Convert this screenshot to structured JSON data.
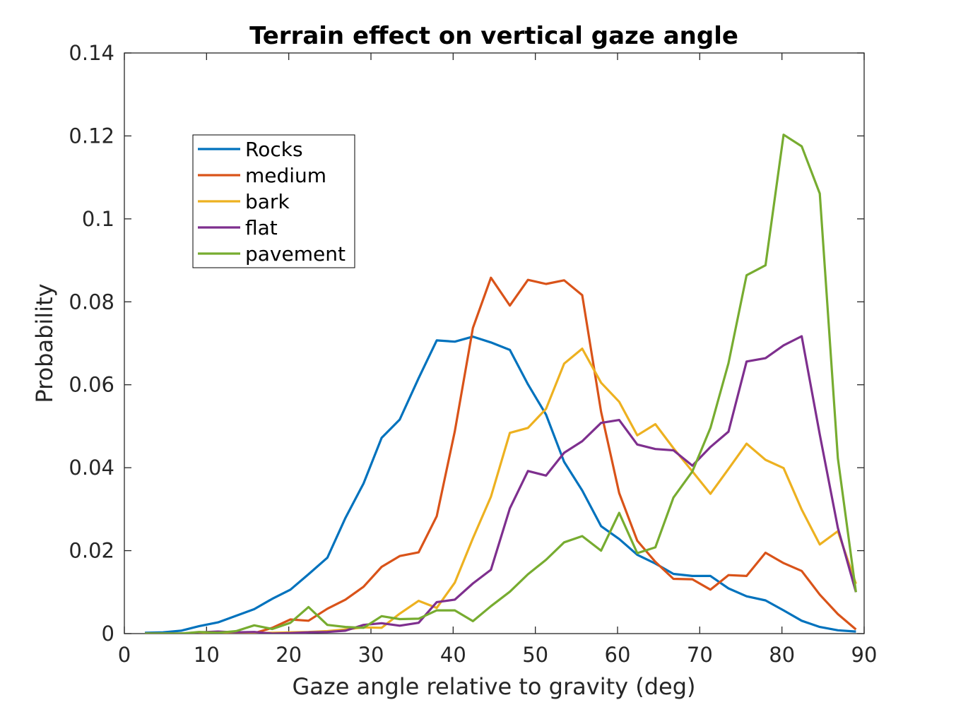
{
  "chart_data": {
    "type": "line",
    "title": "Terrain effect on vertical gaze angle",
    "xlabel": "Gaze angle relative to gravity (deg)",
    "ylabel": "Probability",
    "xlim": [
      0,
      90
    ],
    "ylim": [
      0,
      0.14
    ],
    "x_ticks": [
      "0",
      "10",
      "20",
      "30",
      "40",
      "50",
      "60",
      "70",
      "80",
      "90"
    ],
    "y_ticks": [
      "0",
      "0.02",
      "0.04",
      "0.06",
      "0.08",
      "0.1",
      "0.12",
      "0.14"
    ],
    "grid": false,
    "legend_position": "upper-left",
    "x": [
      2.5,
      4.7,
      6.9,
      9.1,
      11.4,
      13.6,
      15.8,
      18.0,
      20.2,
      22.4,
      24.7,
      26.9,
      29.1,
      31.3,
      33.5,
      35.8,
      38.0,
      40.2,
      42.4,
      44.6,
      46.9,
      49.1,
      51.3,
      53.5,
      55.7,
      58.0,
      60.2,
      62.4,
      64.6,
      66.8,
      69.1,
      71.3,
      73.5,
      75.7,
      78.0,
      80.2,
      82.4,
      84.6,
      86.8,
      89.0
    ],
    "series": [
      {
        "name": "Rocks",
        "color": "#0072BD",
        "values": [
          0.0002,
          0.0003,
          0.0007,
          0.0018,
          0.0027,
          0.0043,
          0.0059,
          0.0084,
          0.0106,
          0.0143,
          0.0183,
          0.0279,
          0.0362,
          0.0472,
          0.0516,
          0.0616,
          0.0707,
          0.0704,
          0.0716,
          0.0702,
          0.0684,
          0.0601,
          0.0528,
          0.0414,
          0.0345,
          0.0259,
          0.0228,
          0.019,
          0.0169,
          0.0144,
          0.0139,
          0.0139,
          0.0109,
          0.009,
          0.008,
          0.0056,
          0.0031,
          0.0016,
          0.0008,
          0.0005
        ]
      },
      {
        "name": "medium",
        "color": "#D95319",
        "values": [
          0.0,
          0.0,
          0.0,
          0.0002,
          0.0002,
          0.0001,
          0.0001,
          0.0014,
          0.0034,
          0.0031,
          0.006,
          0.0082,
          0.0113,
          0.0161,
          0.0187,
          0.0196,
          0.0283,
          0.0488,
          0.0737,
          0.0858,
          0.0791,
          0.0853,
          0.0843,
          0.0852,
          0.0816,
          0.0535,
          0.0339,
          0.0224,
          0.0173,
          0.0132,
          0.0131,
          0.0106,
          0.0141,
          0.0139,
          0.0195,
          0.017,
          0.0151,
          0.0094,
          0.0047,
          0.001
        ]
      },
      {
        "name": "bark",
        "color": "#EDB120",
        "values": [
          0.0,
          0.0,
          0.0,
          0.0,
          0.0,
          0.0,
          0.0001,
          0.0002,
          0.0003,
          0.0004,
          0.0006,
          0.001,
          0.0015,
          0.0014,
          0.0048,
          0.0079,
          0.0062,
          0.0123,
          0.023,
          0.033,
          0.0484,
          0.0496,
          0.0542,
          0.0651,
          0.0687,
          0.0605,
          0.0559,
          0.0478,
          0.0505,
          0.0447,
          0.0391,
          0.0337,
          0.0397,
          0.0458,
          0.0419,
          0.0399,
          0.0299,
          0.0215,
          0.0247,
          0.012
        ]
      },
      {
        "name": "flat",
        "color": "#7E2F8E",
        "values": [
          0.0,
          0.0,
          0.0,
          0.0003,
          0.0005,
          0.0003,
          0.0004,
          0.0,
          0.0001,
          0.0003,
          0.0004,
          0.0007,
          0.0021,
          0.0025,
          0.0019,
          0.0026,
          0.0076,
          0.0082,
          0.0121,
          0.0154,
          0.0302,
          0.0392,
          0.0381,
          0.0436,
          0.0464,
          0.0508,
          0.0515,
          0.0456,
          0.0445,
          0.0442,
          0.0405,
          0.045,
          0.0487,
          0.0656,
          0.0664,
          0.0695,
          0.0717,
          0.048,
          0.0255,
          0.01
        ]
      },
      {
        "name": "pavement",
        "color": "#77AC30",
        "values": [
          0.0,
          0.0,
          0.0,
          0.0004,
          0.0002,
          0.0006,
          0.002,
          0.0011,
          0.0026,
          0.0064,
          0.0021,
          0.0016,
          0.0014,
          0.0042,
          0.0035,
          0.0036,
          0.0056,
          0.0056,
          0.003,
          0.0066,
          0.0101,
          0.0143,
          0.0178,
          0.022,
          0.0235,
          0.02,
          0.0291,
          0.0194,
          0.0208,
          0.0328,
          0.0391,
          0.0496,
          0.0652,
          0.0864,
          0.0888,
          0.1203,
          0.1175,
          0.1061,
          0.0423,
          0.01
        ]
      }
    ]
  }
}
